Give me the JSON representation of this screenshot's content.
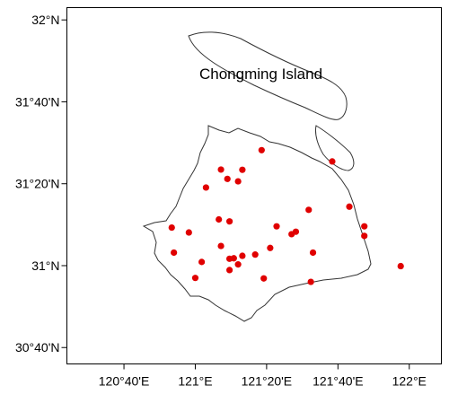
{
  "map": {
    "label_island": "Chongming Island",
    "lon_ticks": [
      {
        "value": 120.6667,
        "label": "120°40'E"
      },
      {
        "value": 121.0,
        "label": "121°E"
      },
      {
        "value": 121.3333,
        "label": "121°20'E"
      },
      {
        "value": 121.6667,
        "label": "121°40'E"
      },
      {
        "value": 122.0,
        "label": "122°E"
      }
    ],
    "lat_ticks": [
      {
        "value": 32.0,
        "label": "32°N"
      },
      {
        "value": 31.6667,
        "label": "31°40'N"
      },
      {
        "value": 31.3333,
        "label": "31°20'N"
      },
      {
        "value": 31.0,
        "label": "31°N"
      },
      {
        "value": 30.6667,
        "label": "30°40'N"
      }
    ],
    "xlim": [
      120.4,
      122.15
    ],
    "ylim": [
      30.6,
      32.05
    ],
    "point_color": "#e00000",
    "outline_color": "#333333",
    "stations": [
      {
        "lon": 121.31,
        "lat": 31.47
      },
      {
        "lon": 121.64,
        "lat": 31.424
      },
      {
        "lon": 121.12,
        "lat": 31.391
      },
      {
        "lon": 121.22,
        "lat": 31.39
      },
      {
        "lon": 121.15,
        "lat": 31.353
      },
      {
        "lon": 121.2,
        "lat": 31.343
      },
      {
        "lon": 121.05,
        "lat": 31.318
      },
      {
        "lon": 121.72,
        "lat": 31.24
      },
      {
        "lon": 121.53,
        "lat": 31.227
      },
      {
        "lon": 121.11,
        "lat": 31.188
      },
      {
        "lon": 121.16,
        "lat": 31.18
      },
      {
        "lon": 121.38,
        "lat": 31.16
      },
      {
        "lon": 121.79,
        "lat": 31.16
      },
      {
        "lon": 120.89,
        "lat": 31.155
      },
      {
        "lon": 121.47,
        "lat": 31.138
      },
      {
        "lon": 121.45,
        "lat": 31.128
      },
      {
        "lon": 121.79,
        "lat": 31.121
      },
      {
        "lon": 120.97,
        "lat": 31.135
      },
      {
        "lon": 121.12,
        "lat": 31.08
      },
      {
        "lon": 121.35,
        "lat": 31.072
      },
      {
        "lon": 121.55,
        "lat": 31.053
      },
      {
        "lon": 120.9,
        "lat": 31.053
      },
      {
        "lon": 121.28,
        "lat": 31.045
      },
      {
        "lon": 121.22,
        "lat": 31.04
      },
      {
        "lon": 121.18,
        "lat": 31.03
      },
      {
        "lon": 121.16,
        "lat": 31.028
      },
      {
        "lon": 121.03,
        "lat": 31.015
      },
      {
        "lon": 121.2,
        "lat": 31.005
      },
      {
        "lon": 121.16,
        "lat": 30.982
      },
      {
        "lon": 121.96,
        "lat": 30.998
      },
      {
        "lon": 121.0,
        "lat": 30.95
      },
      {
        "lon": 121.32,
        "lat": 30.948
      },
      {
        "lon": 121.54,
        "lat": 30.934
      }
    ]
  }
}
